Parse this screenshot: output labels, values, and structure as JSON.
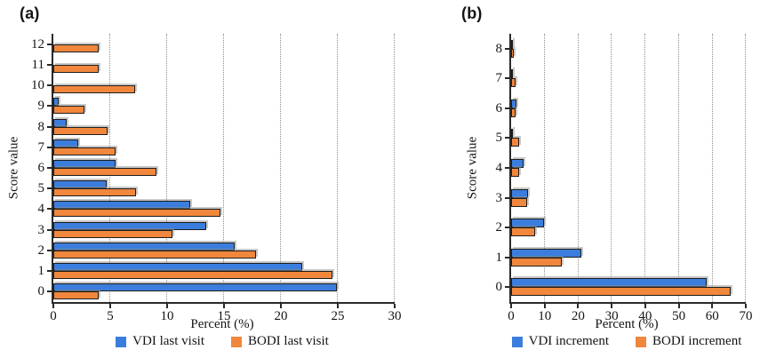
{
  "figure": {
    "background": "#ffffff",
    "axis_color": "#2a2a2a",
    "grid_color": "#8f8f8f",
    "bar_edge_color": "#1d1d1d",
    "bar_shadow_color": "#919191"
  },
  "chart_data": [
    {
      "type": "bar",
      "panel_label": "(a)",
      "orientation": "horizontal",
      "xlabel": "Percent (%)",
      "ylabel": "Score value",
      "xlim": [
        0,
        30
      ],
      "xticks": [
        0,
        5,
        10,
        15,
        20,
        25,
        30
      ],
      "grid": "vertical-dotted",
      "legend_position": "bottom",
      "categories": [
        0,
        1,
        2,
        3,
        4,
        5,
        6,
        7,
        8,
        9,
        10,
        11,
        12
      ],
      "category_order": "0-at-bottom",
      "series": [
        {
          "name": "VDI last visit",
          "color": "#3B7DDD",
          "values": [
            24.9,
            21.9,
            15.9,
            13.4,
            12.0,
            4.7,
            5.5,
            2.2,
            1.2,
            0.5,
            0,
            0,
            0
          ]
        },
        {
          "name": "BODI last visit",
          "color": "#F0873C",
          "values": [
            4.0,
            24.5,
            17.8,
            10.5,
            14.7,
            7.3,
            9.1,
            5.5,
            4.8,
            2.7,
            7.2,
            4.0,
            4.0
          ]
        }
      ]
    },
    {
      "type": "bar",
      "panel_label": "(b)",
      "orientation": "horizontal",
      "xlabel": "Percent (%)",
      "ylabel": "Score value",
      "xlim": [
        0,
        70
      ],
      "xticks": [
        0,
        10,
        20,
        30,
        40,
        50,
        60,
        70
      ],
      "grid": "vertical-dotted",
      "legend_position": "bottom",
      "categories": [
        0,
        1,
        2,
        3,
        4,
        5,
        6,
        7,
        8
      ],
      "category_order": "0-at-bottom",
      "series": [
        {
          "name": "VDI increment",
          "color": "#3B7DDD",
          "values": [
            58.3,
            21.0,
            9.7,
            5.0,
            3.7,
            0.6,
            1.5,
            0.3,
            0.2
          ]
        },
        {
          "name": "BODI increment",
          "color": "#F0873C",
          "values": [
            65.5,
            15.0,
            7.2,
            4.8,
            2.5,
            2.4,
            1.3,
            1.3,
            0.8
          ]
        }
      ]
    }
  ]
}
